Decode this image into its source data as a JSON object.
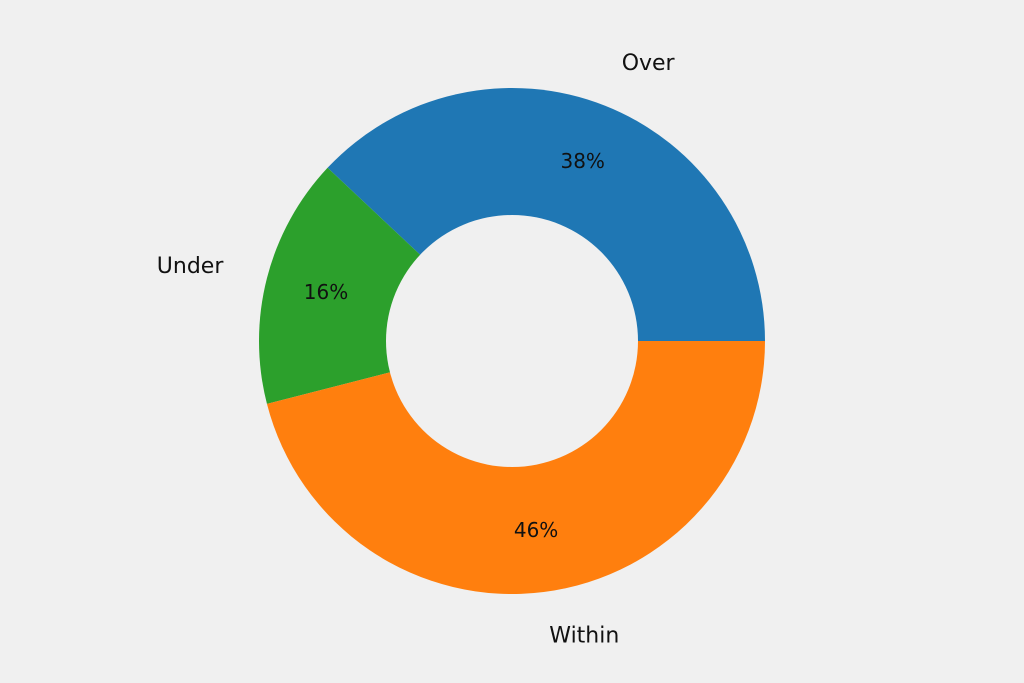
{
  "chart_data": {
    "type": "pie",
    "donut": true,
    "title": "",
    "labels": [
      "Over",
      "Under",
      "Within"
    ],
    "values": [
      38,
      16,
      46
    ],
    "percent_labels": [
      "38%",
      "16%",
      "46%"
    ],
    "colors": [
      "#1f77b4",
      "#2ca02c",
      "#ff7f0e"
    ],
    "start_angle_deg": 0,
    "direction": "counterclockwise",
    "background": "#f0f0f0",
    "hole_color": "#f0f0f0",
    "legend": "none"
  }
}
